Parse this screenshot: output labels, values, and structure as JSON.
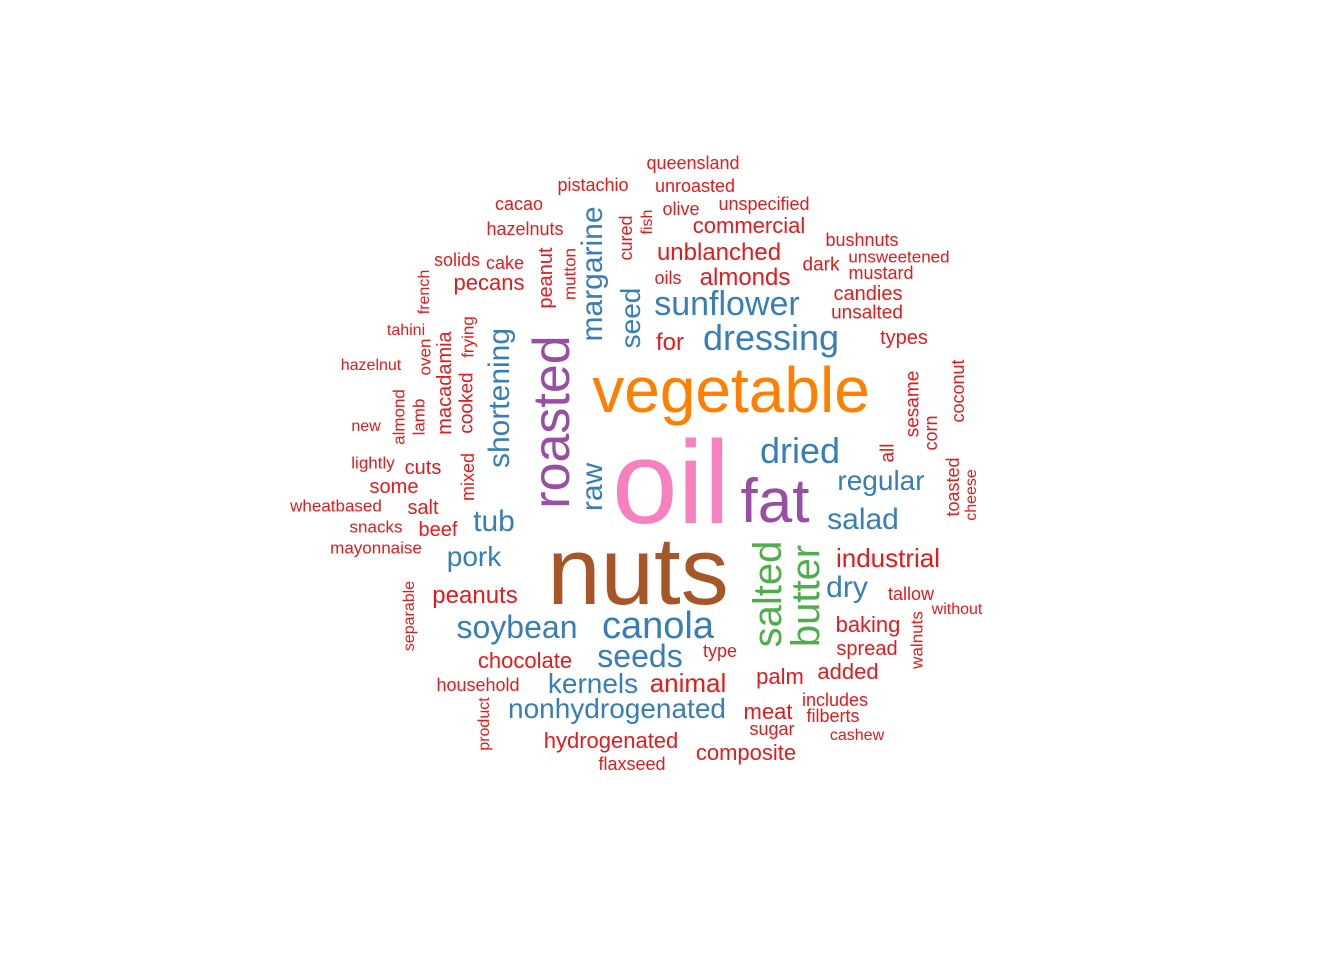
{
  "colors": {
    "red": "#e41a1c",
    "blue": "#377eb8",
    "green": "#4daf4a",
    "purple": "#984ea3",
    "orange": "#ff7f00",
    "brown": "#a65628",
    "pink": "#f781bf"
  },
  "words": [
    {
      "text": "oil",
      "color": "pink"
    },
    {
      "text": "nuts",
      "color": "brown"
    },
    {
      "text": "vegetable",
      "color": "orange"
    },
    {
      "text": "fat",
      "color": "purple"
    },
    {
      "text": "roasted",
      "color": "purple"
    },
    {
      "text": "salted",
      "color": "green"
    },
    {
      "text": "butter",
      "color": "green"
    },
    {
      "text": "canola",
      "color": "blue"
    },
    {
      "text": "dressing",
      "color": "blue"
    },
    {
      "text": "sunflower",
      "color": "blue"
    },
    {
      "text": "margarine",
      "color": "blue"
    },
    {
      "text": "shortening",
      "color": "blue"
    },
    {
      "text": "dried",
      "color": "blue"
    },
    {
      "text": "soybean",
      "color": "blue"
    },
    {
      "text": "seeds",
      "color": "blue"
    },
    {
      "text": "nonhydrogenated",
      "color": "blue"
    },
    {
      "text": "kernels",
      "color": "blue"
    },
    {
      "text": "salad",
      "color": "blue"
    },
    {
      "text": "regular",
      "color": "blue"
    },
    {
      "text": "tub",
      "color": "blue"
    },
    {
      "text": "pork",
      "color": "blue"
    },
    {
      "text": "dry",
      "color": "blue"
    },
    {
      "text": "raw",
      "color": "blue"
    },
    {
      "text": "seed",
      "color": "blue"
    },
    {
      "text": "industrial",
      "color": "red"
    },
    {
      "text": "animal",
      "color": "red"
    },
    {
      "text": "unblanched",
      "color": "red"
    },
    {
      "text": "almonds",
      "color": "red"
    },
    {
      "text": "peanuts",
      "color": "red"
    },
    {
      "text": "chocolate",
      "color": "red"
    },
    {
      "text": "hydrogenated",
      "color": "red"
    },
    {
      "text": "composite",
      "color": "red"
    },
    {
      "text": "commercial",
      "color": "red"
    },
    {
      "text": "pecans",
      "color": "red"
    },
    {
      "text": "baking",
      "color": "red"
    },
    {
      "text": "palm",
      "color": "red"
    },
    {
      "text": "added",
      "color": "red"
    },
    {
      "text": "meat",
      "color": "red"
    },
    {
      "text": "spread",
      "color": "red"
    },
    {
      "text": "for",
      "color": "red"
    },
    {
      "text": "cuts",
      "color": "red"
    },
    {
      "text": "some",
      "color": "red"
    },
    {
      "text": "salt",
      "color": "red"
    },
    {
      "text": "beef",
      "color": "red"
    },
    {
      "text": "types",
      "color": "red"
    },
    {
      "text": "candies",
      "color": "red"
    },
    {
      "text": "unsalted",
      "color": "red"
    },
    {
      "text": "dark",
      "color": "red"
    },
    {
      "text": "mustard",
      "color": "red"
    },
    {
      "text": "bushnuts",
      "color": "red"
    },
    {
      "text": "unsweetened",
      "color": "red"
    },
    {
      "text": "queensland",
      "color": "red"
    },
    {
      "text": "pistachio",
      "color": "red"
    },
    {
      "text": "unroasted",
      "color": "red"
    },
    {
      "text": "cacao",
      "color": "red"
    },
    {
      "text": "unspecified",
      "color": "red"
    },
    {
      "text": "olive",
      "color": "red"
    },
    {
      "text": "hazelnuts",
      "color": "red"
    },
    {
      "text": "solids",
      "color": "red"
    },
    {
      "text": "cake",
      "color": "red"
    },
    {
      "text": "oils",
      "color": "red"
    },
    {
      "text": "tahini",
      "color": "red"
    },
    {
      "text": "hazelnut",
      "color": "red"
    },
    {
      "text": "new",
      "color": "red"
    },
    {
      "text": "lightly",
      "color": "red"
    },
    {
      "text": "wheatbased",
      "color": "red"
    },
    {
      "text": "snacks",
      "color": "red"
    },
    {
      "text": "mayonnaise",
      "color": "red"
    },
    {
      "text": "household",
      "color": "red"
    },
    {
      "text": "type",
      "color": "red"
    },
    {
      "text": "sugar",
      "color": "red"
    },
    {
      "text": "includes",
      "color": "red"
    },
    {
      "text": "filberts",
      "color": "red"
    },
    {
      "text": "cashew",
      "color": "red"
    },
    {
      "text": "tallow",
      "color": "red"
    },
    {
      "text": "without",
      "color": "red"
    },
    {
      "text": "flaxseed",
      "color": "red"
    },
    {
      "text": "peanut",
      "color": "red"
    },
    {
      "text": "mutton",
      "color": "red"
    },
    {
      "text": "cured",
      "color": "red"
    },
    {
      "text": "fish",
      "color": "red"
    },
    {
      "text": "french",
      "color": "red"
    },
    {
      "text": "frying",
      "color": "red"
    },
    {
      "text": "oven",
      "color": "red"
    },
    {
      "text": "macadamia",
      "color": "red"
    },
    {
      "text": "cooked",
      "color": "red"
    },
    {
      "text": "mixed",
      "color": "red"
    },
    {
      "text": "almond",
      "color": "red"
    },
    {
      "text": "lamb",
      "color": "red"
    },
    {
      "text": "separable",
      "color": "red"
    },
    {
      "text": "product",
      "color": "red"
    },
    {
      "text": "walnuts",
      "color": "red"
    },
    {
      "text": "all",
      "color": "red"
    },
    {
      "text": "sesame",
      "color": "red"
    },
    {
      "text": "corn",
      "color": "red"
    },
    {
      "text": "coconut",
      "color": "red"
    },
    {
      "text": "toasted",
      "color": "red"
    },
    {
      "text": "cheese",
      "color": "red"
    }
  ]
}
